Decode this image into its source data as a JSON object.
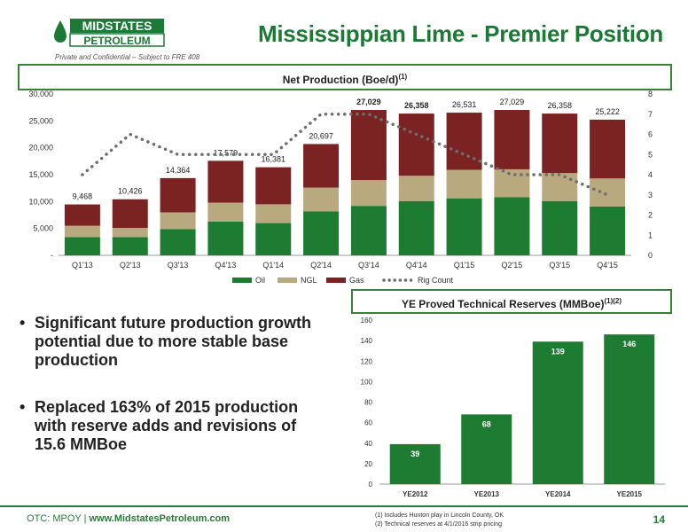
{
  "logo": {
    "line1": "MIDSTATES",
    "line2": "PETROLEUM"
  },
  "confidential": "Private and Confidential – Subject to FRE 408",
  "slide_title": "Mississippian Lime - Premier Position",
  "colors": {
    "oil": "#1e7b32",
    "ngl": "#b8a97e",
    "gas": "#7b2222",
    "rig": "#6e6e6e",
    "accent": "#1b7a35"
  },
  "bullets": [
    "Significant future production growth potential due to more stable base production",
    "Replaced 163% of 2015 production with reserve adds and revisions of 15.6 MMBoe"
  ],
  "footer": {
    "ticker": "OTC: MPOY | ",
    "website": "www.MidstatesPetroleum.com",
    "page": "14"
  },
  "notes": [
    "(1) Includes Hunton play in Lincoln County, OK",
    "(2) Technical reserves at 4/1/2016 strip pricing"
  ],
  "chart_data": [
    {
      "type": "bar",
      "title": "Net Production (Boe/d)",
      "title_sup": "(1)",
      "categories": [
        "Q1'13",
        "Q2'13",
        "Q3'13",
        "Q4'13",
        "Q1'14",
        "Q2'14",
        "Q3'14",
        "Q4'14",
        "Q1'15",
        "Q2'15",
        "Q3'15",
        "Q4'15"
      ],
      "stacked": true,
      "series": [
        {
          "name": "Oil",
          "values": [
            3400,
            3400,
            4900,
            6300,
            6000,
            8200,
            9200,
            10100,
            10600,
            10800,
            10100,
            9100
          ]
        },
        {
          "name": "NGL",
          "values": [
            2100,
            1700,
            3100,
            3500,
            3500,
            4400,
            4800,
            4700,
            5300,
            5200,
            5200,
            5200
          ]
        },
        {
          "name": "Gas",
          "values": [
            3968,
            5326,
            6364,
            7779,
            6881,
            8097,
            13029,
            11558,
            10631,
            11029,
            11058,
            10922
          ]
        }
      ],
      "totals": [
        "9,468",
        "10,426",
        "14,364",
        "17,579",
        "16,381",
        "20,697",
        "27,029",
        "26,358",
        "26,531",
        "27,029",
        "26,358",
        "25,222"
      ],
      "line_series": {
        "name": "Rig Count",
        "values": [
          4,
          6,
          5,
          5,
          5,
          7,
          7,
          6,
          5,
          4,
          4,
          3
        ],
        "axis": "right"
      },
      "ylim": [
        0,
        30000
      ],
      "yticks": [
        "-",
        "5,000",
        "10,000",
        "15,000",
        "20,000",
        "25,000",
        "30,000"
      ],
      "y2lim": [
        0,
        8
      ],
      "y2ticks": [
        "0",
        "1",
        "2",
        "3",
        "4",
        "5",
        "6",
        "7",
        "8"
      ],
      "legend_position": "bottom"
    },
    {
      "type": "bar",
      "title": "YE Proved Technical Reserves (MMBoe)",
      "title_sup": "(1)(2)",
      "categories": [
        "YE2012",
        "YE2013",
        "YE2014",
        "YE2015"
      ],
      "values": [
        39,
        68,
        139,
        146
      ],
      "ylim": [
        0,
        160
      ],
      "yticks": [
        "0",
        "20",
        "40",
        "60",
        "80",
        "100",
        "120",
        "140",
        "160"
      ]
    }
  ]
}
